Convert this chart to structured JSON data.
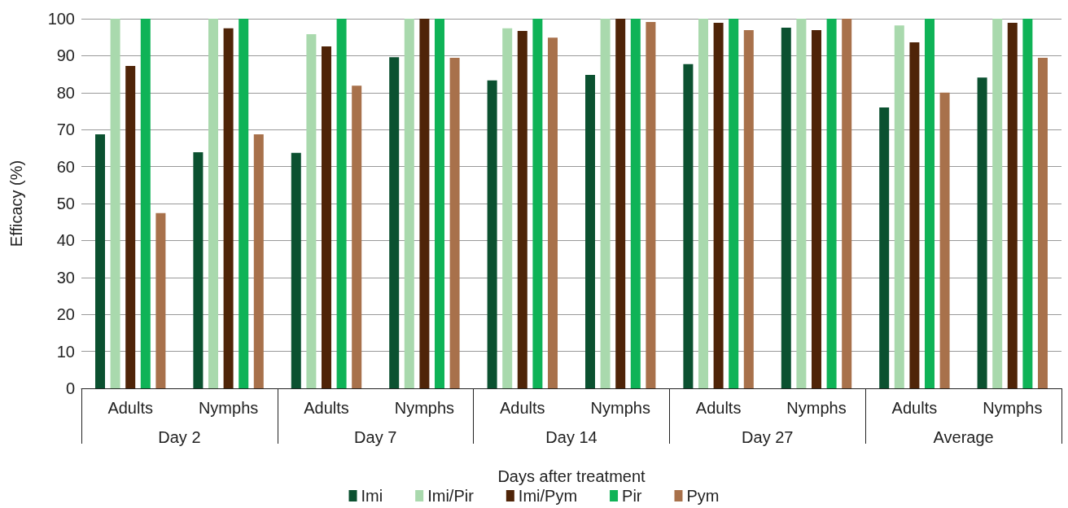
{
  "chart_data": {
    "type": "bar",
    "xlabel": "Days after treatment",
    "ylabel": "Efficacy (%)",
    "categories": [
      "Adults",
      "Nymphs",
      "Adults",
      "Nymphs",
      "Adults",
      "Nymphs",
      "Adults",
      "Nymphs",
      "Adults",
      "Nymphs"
    ],
    "annotations": [
      "Day 2",
      "Day 7",
      "Day 14",
      "Day 27",
      "Average"
    ],
    "series": [
      {
        "name": "Imi",
        "color": "#0b5130",
        "values": [
          68.7,
          63.9,
          63.7,
          89.6,
          83.3,
          84.8,
          87.7,
          97.6,
          76,
          84.1
        ]
      },
      {
        "name": "Imi/Pir",
        "color": "#a9d9ad",
        "values": [
          100,
          100,
          95.8,
          100,
          97.4,
          100,
          100,
          100,
          98.2,
          100
        ]
      },
      {
        "name": "Imi/Pym",
        "color": "#4f2408",
        "values": [
          87.2,
          97.4,
          92.5,
          100,
          96.7,
          100,
          98.9,
          96.9,
          93.6,
          98.9
        ]
      },
      {
        "name": "Pir",
        "color": "#0fb357",
        "values": [
          100,
          100,
          100,
          100,
          100,
          100,
          100,
          100,
          100,
          100
        ]
      },
      {
        "name": "Pym",
        "color": "#a8714b",
        "values": [
          47.4,
          68.7,
          81.9,
          89.4,
          94.9,
          99.1,
          96.9,
          100,
          80,
          89.4
        ]
      }
    ],
    "ylim": [
      0,
      100
    ],
    "yticks": [
      0,
      10,
      20,
      30,
      40,
      50,
      60,
      70,
      80,
      90,
      100
    ],
    "grid": "y",
    "legend": "bottom"
  }
}
